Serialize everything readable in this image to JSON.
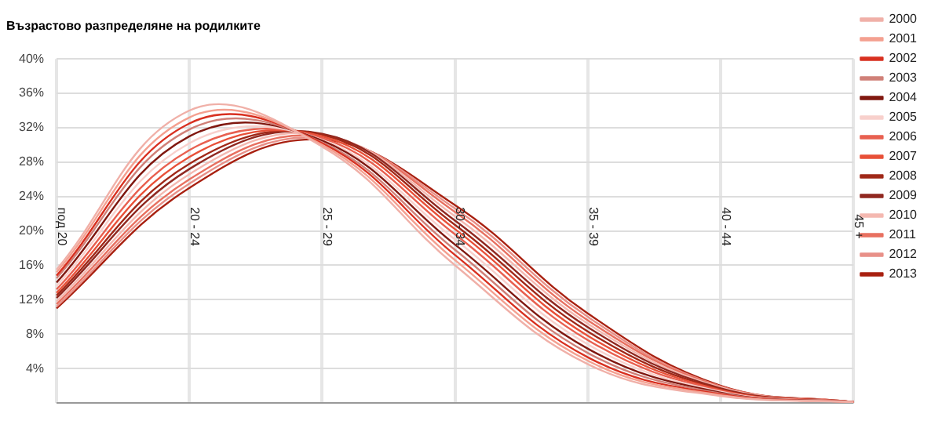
{
  "chart_data": {
    "type": "line",
    "title": "Възрастово разпределяне на родилките",
    "categories": [
      "под 20",
      "20 - 24",
      "25 - 29",
      "30 - 34",
      "35 - 39",
      "40 - 44",
      "45 +"
    ],
    "ylim": [
      0,
      40
    ],
    "yticks": [
      {
        "value": 4,
        "label": "4%"
      },
      {
        "value": 8,
        "label": "8%"
      },
      {
        "value": 12,
        "label": "12%"
      },
      {
        "value": 16,
        "label": "16%"
      },
      {
        "value": 20,
        "label": "20%"
      },
      {
        "value": 24,
        "label": "24%"
      },
      {
        "value": 28,
        "label": "28%"
      },
      {
        "value": 32,
        "label": "32%"
      },
      {
        "value": 36,
        "label": "36%"
      },
      {
        "value": 40,
        "label": "40%"
      }
    ],
    "grid": true,
    "legend": "right",
    "marker": "none",
    "line_style": "solid",
    "series": [
      {
        "name": "2000",
        "color": "#f0b0a8",
        "values": [
          15.5,
          34,
          29.8,
          16,
          4.5,
          0.8,
          0.1
        ]
      },
      {
        "name": "2001",
        "color": "#f4a090",
        "values": [
          15.2,
          33.2,
          30,
          16.6,
          4.9,
          0.9,
          0.1
        ]
      },
      {
        "name": "2002",
        "color": "#d83020",
        "values": [
          14.8,
          32.5,
          30.2,
          17.2,
          5.3,
          1,
          0.1
        ]
      },
      {
        "name": "2003",
        "color": "#d08078",
        "values": [
          14.5,
          31.8,
          30.3,
          17.8,
          5.8,
          1.1,
          0.1
        ]
      },
      {
        "name": "2004",
        "color": "#801810",
        "values": [
          14,
          31,
          30.5,
          18.4,
          6.3,
          1.2,
          0.1
        ]
      },
      {
        "name": "2005",
        "color": "#f8d0cc",
        "values": [
          13.6,
          30.2,
          30.6,
          19,
          6.8,
          1.3,
          0.1
        ]
      },
      {
        "name": "2006",
        "color": "#e86050",
        "values": [
          13.2,
          29.4,
          30.8,
          19.6,
          7.3,
          1.4,
          0.1
        ]
      },
      {
        "name": "2007",
        "color": "#e85038",
        "values": [
          12.8,
          28.6,
          31,
          20.2,
          7.8,
          1.5,
          0.1
        ]
      },
      {
        "name": "2008",
        "color": "#a02818",
        "values": [
          12.5,
          27.8,
          31.2,
          20.7,
          8.3,
          1.6,
          0.1
        ]
      },
      {
        "name": "2009",
        "color": "#902820",
        "values": [
          12.2,
          27.2,
          31.3,
          21.2,
          8.8,
          1.7,
          0.1
        ]
      },
      {
        "name": "2010",
        "color": "#f4b8b0",
        "values": [
          11.8,
          26.6,
          31.2,
          21.7,
          9.2,
          1.8,
          0.1
        ]
      },
      {
        "name": "2011",
        "color": "#e87060",
        "values": [
          11.5,
          26,
          31,
          22.2,
          9.6,
          1.9,
          0.1
        ]
      },
      {
        "name": "2012",
        "color": "#e89088",
        "values": [
          11.2,
          25.5,
          30.8,
          22.6,
          10,
          1.9,
          0.1
        ]
      },
      {
        "name": "2013",
        "color": "#a82010",
        "values": [
          11,
          25,
          30.6,
          23,
          10.4,
          2,
          0.1
        ]
      }
    ]
  }
}
